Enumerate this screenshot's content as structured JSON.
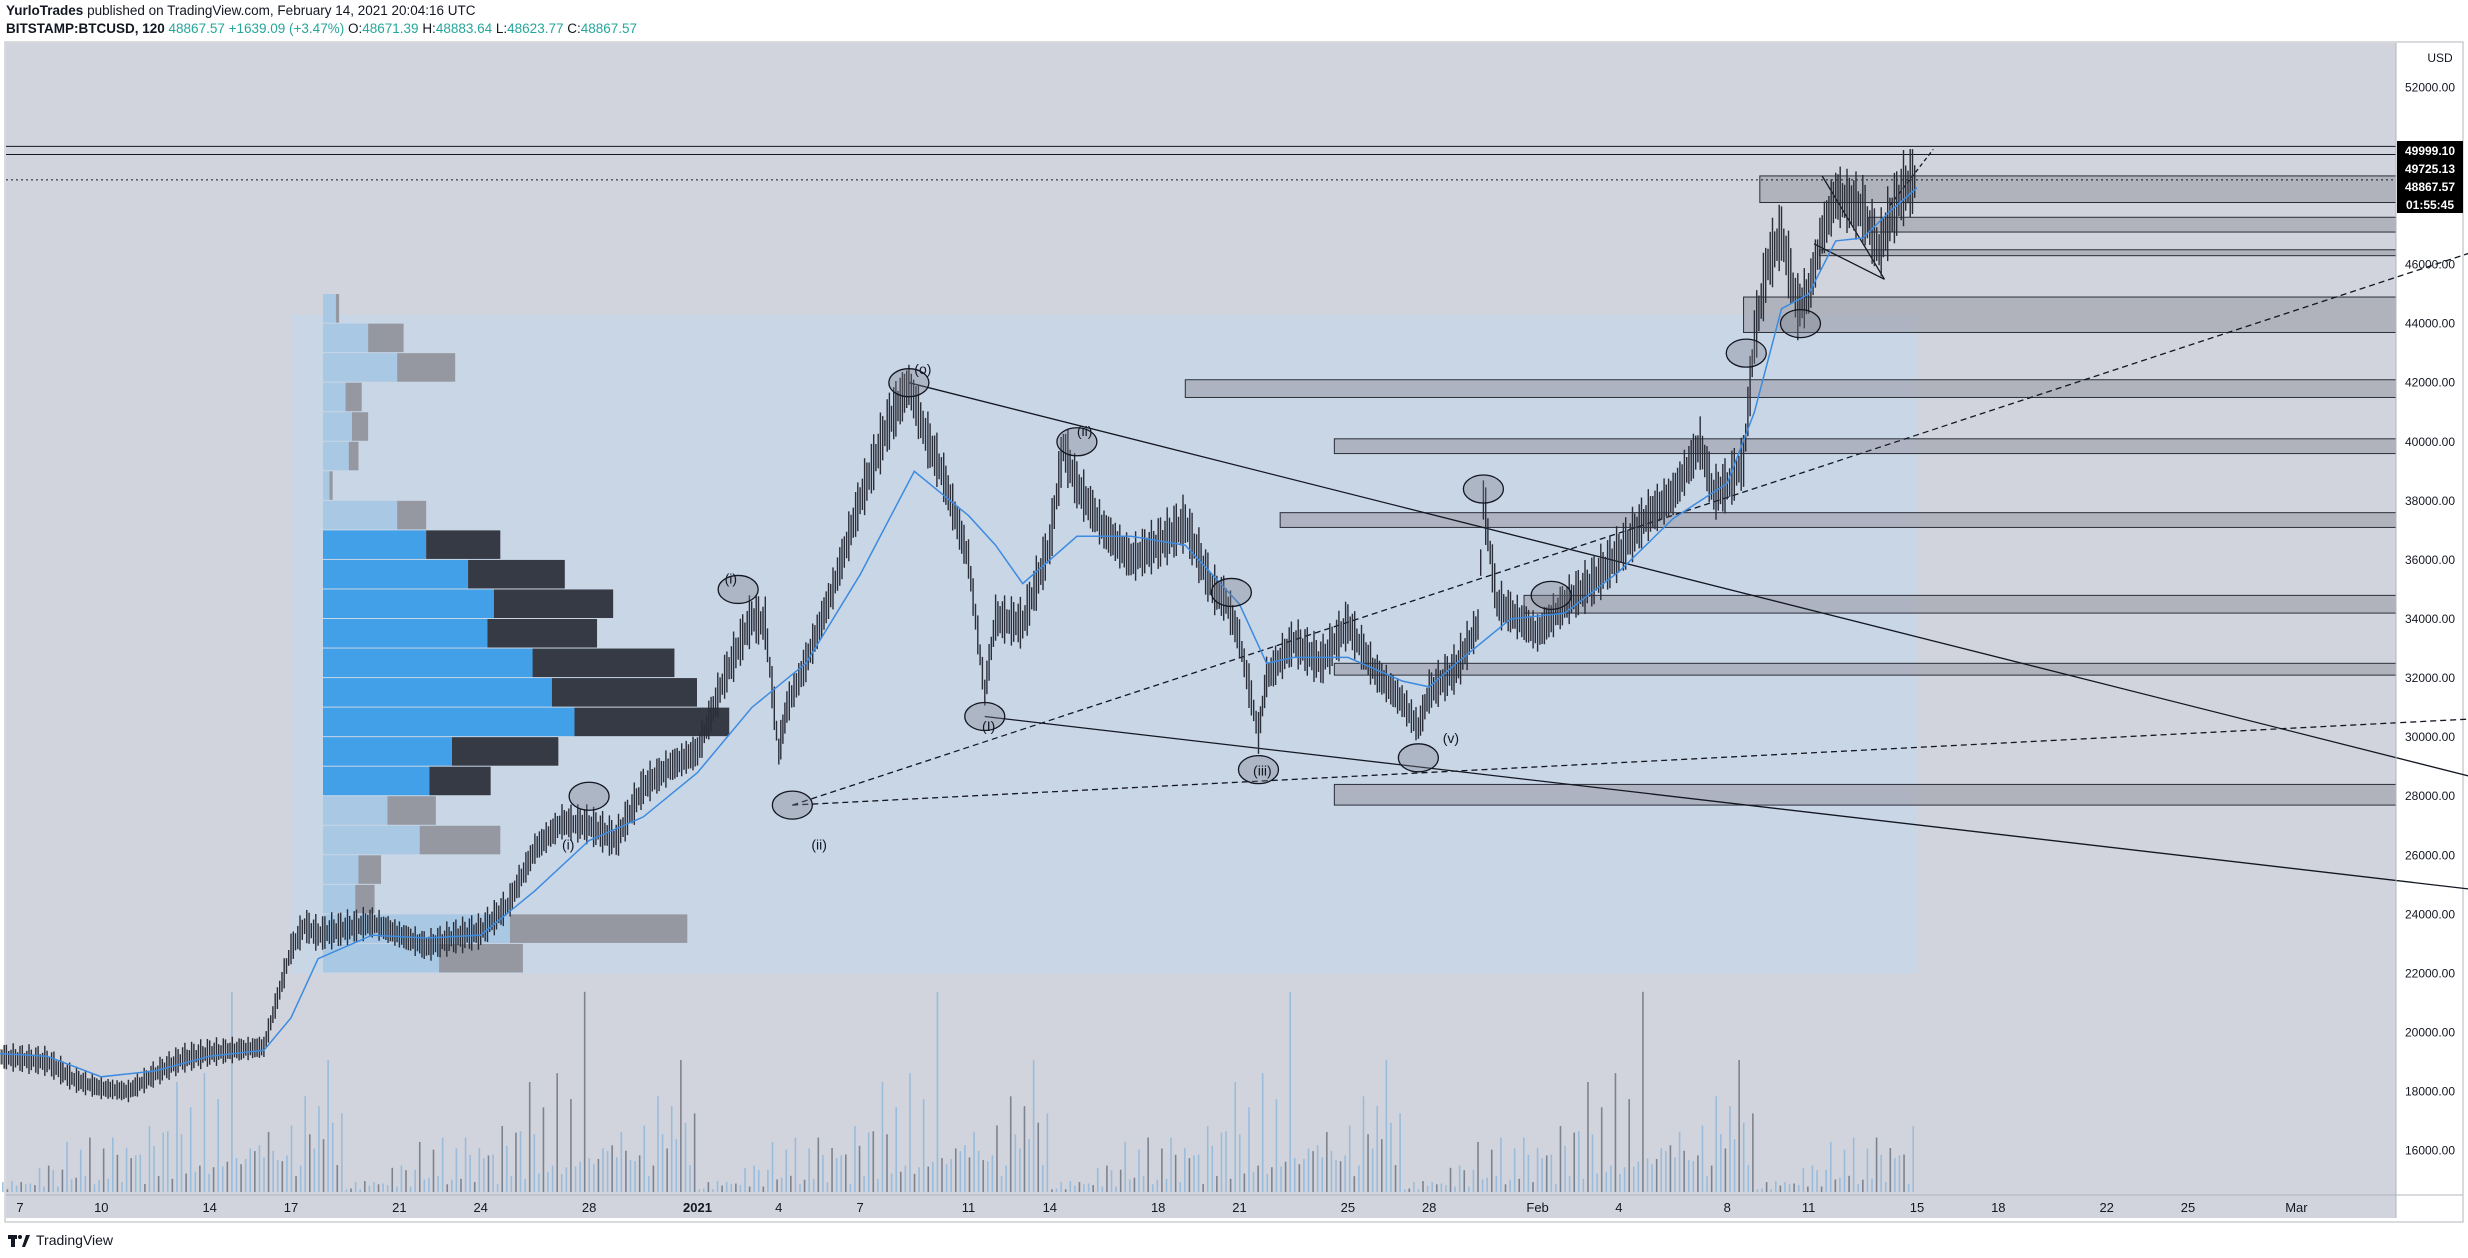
{
  "header": {
    "author": "YurloTrades",
    "published_text": "published on TradingView.com, February 14, 2021 20:04:16 UTC",
    "symbol": "BITSTAMP:BTCUSD, 120",
    "last": "48867.57",
    "change": "+1639.09 (+3.47%)",
    "o_label": "O:",
    "o_value": "48671.39",
    "h_label": "H:",
    "h_value": "48883.64",
    "l_label": "L:",
    "l_value": "48623.77",
    "c_label": "C:",
    "c_value": "48867.57"
  },
  "footer": {
    "brand": "TradingView"
  },
  "chart_data": {
    "type": "candlestick",
    "currency": "USD",
    "ylim": [
      14500,
      53500
    ],
    "y_ticks": [
      16000,
      18000,
      20000,
      22000,
      24000,
      26000,
      28000,
      30000,
      32000,
      34000,
      36000,
      38000,
      40000,
      42000,
      44000,
      46000,
      48000,
      50000,
      52000
    ],
    "price_labels": [
      {
        "text": "49999.10",
        "value": 49999.1
      },
      {
        "text": "49725.13",
        "value": 49725.13
      },
      {
        "text": "48867.57",
        "value": 48867.57
      },
      {
        "text": "01:55:45",
        "value": 48200
      }
    ],
    "x_ticks": [
      {
        "label": "7",
        "day": 7
      },
      {
        "label": "10",
        "day": 10
      },
      {
        "label": "14",
        "day": 14
      },
      {
        "label": "17",
        "day": 17
      },
      {
        "label": "21",
        "day": 21
      },
      {
        "label": "24",
        "day": 24
      },
      {
        "label": "28",
        "day": 28
      },
      {
        "label": "2021",
        "day": 32,
        "bold": true
      },
      {
        "label": "4",
        "day": 35
      },
      {
        "label": "7",
        "day": 38
      },
      {
        "label": "11",
        "day": 42
      },
      {
        "label": "14",
        "day": 45
      },
      {
        "label": "18",
        "day": 49
      },
      {
        "label": "21",
        "day": 52
      },
      {
        "label": "25",
        "day": 56
      },
      {
        "label": "28",
        "day": 59
      },
      {
        "label": "Feb",
        "day": 63
      },
      {
        "label": "4",
        "day": 66
      },
      {
        "label": "8",
        "day": 70
      },
      {
        "label": "11",
        "day": 73
      },
      {
        "label": "15",
        "day": 77
      },
      {
        "label": "18",
        "day": 80
      },
      {
        "label": "22",
        "day": 84
      },
      {
        "label": "25",
        "day": 87
      },
      {
        "label": "Mar",
        "day": 91
      }
    ],
    "price_path": [
      [
        6,
        19200
      ],
      [
        7,
        19100
      ],
      [
        8,
        19000
      ],
      [
        9,
        18400
      ],
      [
        10,
        18100
      ],
      [
        11,
        18000
      ],
      [
        12,
        18600
      ],
      [
        13,
        19100
      ],
      [
        14,
        19300
      ],
      [
        15,
        19400
      ],
      [
        16,
        19500
      ],
      [
        17,
        22800
      ],
      [
        17.5,
        23600
      ],
      [
        18,
        23300
      ],
      [
        19,
        23500
      ],
      [
        20,
        23700
      ],
      [
        21,
        23300
      ],
      [
        22,
        22900
      ],
      [
        23,
        23200
      ],
      [
        24,
        23400
      ],
      [
        25,
        24300
      ],
      [
        26,
        26200
      ],
      [
        27,
        27100
      ],
      [
        28,
        27000
      ],
      [
        29,
        26500
      ],
      [
        30,
        28300
      ],
      [
        31,
        29000
      ],
      [
        32,
        29500
      ],
      [
        33,
        32000
      ],
      [
        34,
        34000
      ],
      [
        34.5,
        33800
      ],
      [
        35,
        29500
      ],
      [
        35.3,
        31000
      ],
      [
        36,
        32500
      ],
      [
        37,
        35000
      ],
      [
        38,
        38000
      ],
      [
        39,
        40500
      ],
      [
        39.8,
        41900
      ],
      [
        40.5,
        40000
      ],
      [
        41,
        39000
      ],
      [
        42,
        36000
      ],
      [
        42.6,
        31500
      ],
      [
        43,
        34000
      ],
      [
        44,
        33800
      ],
      [
        45,
        36500
      ],
      [
        45.5,
        39800
      ],
      [
        46,
        38500
      ],
      [
        47,
        37000
      ],
      [
        48,
        36000
      ],
      [
        49,
        36500
      ],
      [
        50,
        37200
      ],
      [
        51,
        35000
      ],
      [
        51.5,
        34600
      ],
      [
        52,
        33300
      ],
      [
        52.7,
        30100
      ],
      [
        53,
        32000
      ],
      [
        54,
        33200
      ],
      [
        55,
        32500
      ],
      [
        56,
        33800
      ],
      [
        57,
        32200
      ],
      [
        58,
        31200
      ],
      [
        58.6,
        30300
      ],
      [
        59,
        31500
      ],
      [
        60,
        32300
      ],
      [
        60.8,
        33800
      ],
      [
        61,
        38000
      ],
      [
        61.5,
        34500
      ],
      [
        62,
        34200
      ],
      [
        63,
        33500
      ],
      [
        64,
        34500
      ],
      [
        65,
        35200
      ],
      [
        66,
        36200
      ],
      [
        67,
        37400
      ],
      [
        68,
        38200
      ],
      [
        69,
        39900
      ],
      [
        69.5,
        38200
      ],
      [
        70,
        38500
      ],
      [
        70.6,
        39300
      ],
      [
        71,
        43500
      ],
      [
        71.5,
        46000
      ],
      [
        72,
        47000
      ],
      [
        72.6,
        44500
      ],
      [
        73,
        45000
      ],
      [
        73.5,
        47000
      ],
      [
        74,
        48300
      ],
      [
        75,
        47800
      ],
      [
        75.6,
        46500
      ],
      [
        76,
        47500
      ],
      [
        76.5,
        48500
      ],
      [
        77,
        48867
      ]
    ],
    "ma_path": [
      [
        6,
        19300
      ],
      [
        8,
        19200
      ],
      [
        10,
        18500
      ],
      [
        12,
        18700
      ],
      [
        14,
        19200
      ],
      [
        16,
        19400
      ],
      [
        17,
        20500
      ],
      [
        18,
        22500
      ],
      [
        20,
        23300
      ],
      [
        22,
        23200
      ],
      [
        24,
        23300
      ],
      [
        26,
        24800
      ],
      [
        28,
        26500
      ],
      [
        30,
        27300
      ],
      [
        32,
        28800
      ],
      [
        34,
        31000
      ],
      [
        36,
        32500
      ],
      [
        38,
        35500
      ],
      [
        40,
        39000
      ],
      [
        42,
        37500
      ],
      [
        43,
        36500
      ],
      [
        44,
        35200
      ],
      [
        46,
        36800
      ],
      [
        48,
        36800
      ],
      [
        50,
        36500
      ],
      [
        52,
        34500
      ],
      [
        53,
        32500
      ],
      [
        54,
        32700
      ],
      [
        56,
        32700
      ],
      [
        58,
        31900
      ],
      [
        59,
        31700
      ],
      [
        60,
        32500
      ],
      [
        62,
        34000
      ],
      [
        64,
        34200
      ],
      [
        66,
        35600
      ],
      [
        68,
        37400
      ],
      [
        70,
        38600
      ],
      [
        71,
        41000
      ],
      [
        72,
        44500
      ],
      [
        73,
        45000
      ],
      [
        74,
        46800
      ],
      [
        75,
        46900
      ],
      [
        76,
        47800
      ],
      [
        77,
        48600
      ]
    ],
    "volume_profile": [
      {
        "price": 22500,
        "left": 0.36,
        "right": 0.26,
        "active": false
      },
      {
        "price": 23500,
        "left": 0.58,
        "right": 0.55,
        "active": false
      },
      {
        "price": 24500,
        "left": 0.1,
        "right": 0.06,
        "active": false
      },
      {
        "price": 25500,
        "left": 0.11,
        "right": 0.07,
        "active": false
      },
      {
        "price": 26500,
        "left": 0.3,
        "right": 0.25,
        "active": false
      },
      {
        "price": 27500,
        "left": 0.2,
        "right": 0.15,
        "active": false
      },
      {
        "price": 28500,
        "left": 0.33,
        "right": 0.19,
        "active": true
      },
      {
        "price": 29500,
        "left": 0.4,
        "right": 0.33,
        "active": true
      },
      {
        "price": 30500,
        "left": 0.78,
        "right": 0.48,
        "active": true
      },
      {
        "price": 31500,
        "left": 0.71,
        "right": 0.45,
        "active": true
      },
      {
        "price": 32500,
        "left": 0.65,
        "right": 0.44,
        "active": true
      },
      {
        "price": 33500,
        "left": 0.51,
        "right": 0.34,
        "active": true
      },
      {
        "price": 34500,
        "left": 0.53,
        "right": 0.37,
        "active": true
      },
      {
        "price": 35500,
        "left": 0.45,
        "right": 0.3,
        "active": true
      },
      {
        "price": 36500,
        "left": 0.32,
        "right": 0.23,
        "active": true
      },
      {
        "price": 37500,
        "left": 0.23,
        "right": 0.09,
        "active": false
      },
      {
        "price": 38500,
        "left": 0.02,
        "right": 0.01,
        "active": false
      },
      {
        "price": 39500,
        "left": 0.08,
        "right": 0.03,
        "active": false
      },
      {
        "price": 40500,
        "left": 0.09,
        "right": 0.05,
        "active": false
      },
      {
        "price": 41500,
        "left": 0.07,
        "right": 0.05,
        "active": false
      },
      {
        "price": 42500,
        "left": 0.23,
        "right": 0.18,
        "active": false
      },
      {
        "price": 43500,
        "left": 0.14,
        "right": 0.11,
        "active": false
      },
      {
        "price": 44500,
        "left": 0.04,
        "right": 0.01,
        "active": false
      }
    ],
    "zones": [
      {
        "day_start": 55.5,
        "day_end": 112,
        "low": 27700,
        "high": 28400
      },
      {
        "day_start": 55.5,
        "day_end": 112,
        "low": 32100,
        "high": 32500
      },
      {
        "day_start": 62.5,
        "day_end": 112,
        "low": 34200,
        "high": 34800
      },
      {
        "day_start": 53.5,
        "day_end": 112,
        "low": 37100,
        "high": 37600
      },
      {
        "day_start": 55.5,
        "day_end": 112,
        "low": 39600,
        "high": 40100
      },
      {
        "day_start": 50,
        "day_end": 112,
        "low": 41500,
        "high": 42100
      },
      {
        "day_start": 70.6,
        "day_end": 112,
        "low": 43700,
        "high": 44900
      },
      {
        "day_start": 73.4,
        "day_end": 112,
        "low": 46300,
        "high": 46500
      },
      {
        "day_start": 75.2,
        "day_end": 112,
        "low": 47100,
        "high": 47600
      },
      {
        "day_start": 71.2,
        "day_end": 112,
        "low": 48100,
        "high": 49000
      }
    ],
    "wave_labels": [
      {
        "text": "(o)",
        "day": 40.0,
        "price": 42300
      },
      {
        "text": "(i)",
        "day": 33.0,
        "price": 35200
      },
      {
        "text": "(i)",
        "day": 27.0,
        "price": 26200
      },
      {
        "text": "(ii)",
        "day": 36.2,
        "price": 26200
      },
      {
        "text": "(ii)",
        "day": 46.0,
        "price": 40200
      },
      {
        "text": "(iii)",
        "day": 52.5,
        "price": 28700
      },
      {
        "text": "(v)",
        "day": 59.5,
        "price": 29800
      },
      {
        "text": "(I)",
        "day": 42.5,
        "price": 30200
      }
    ],
    "volumes": [
      12,
      8,
      15,
      10,
      22,
      9,
      30,
      14,
      11,
      18,
      40,
      25,
      60,
      33,
      20,
      45,
      70,
      38,
      26,
      55,
      42,
      90,
      35,
      28,
      66,
      48,
      110,
      52,
      30,
      80,
      44,
      95,
      62,
      36,
      150,
      70,
      58,
      120,
      85,
      40,
      200,
      75,
      48,
      140,
      92,
      60,
      180,
      66,
      50,
      130,
      77,
      55,
      260,
      88,
      46,
      150,
      99,
      62,
      170,
      70,
      84,
      125,
      58,
      40,
      95,
      110,
      72,
      60,
      145,
      210,
      88,
      120,
      160,
      240,
      90,
      70,
      130
    ]
  }
}
